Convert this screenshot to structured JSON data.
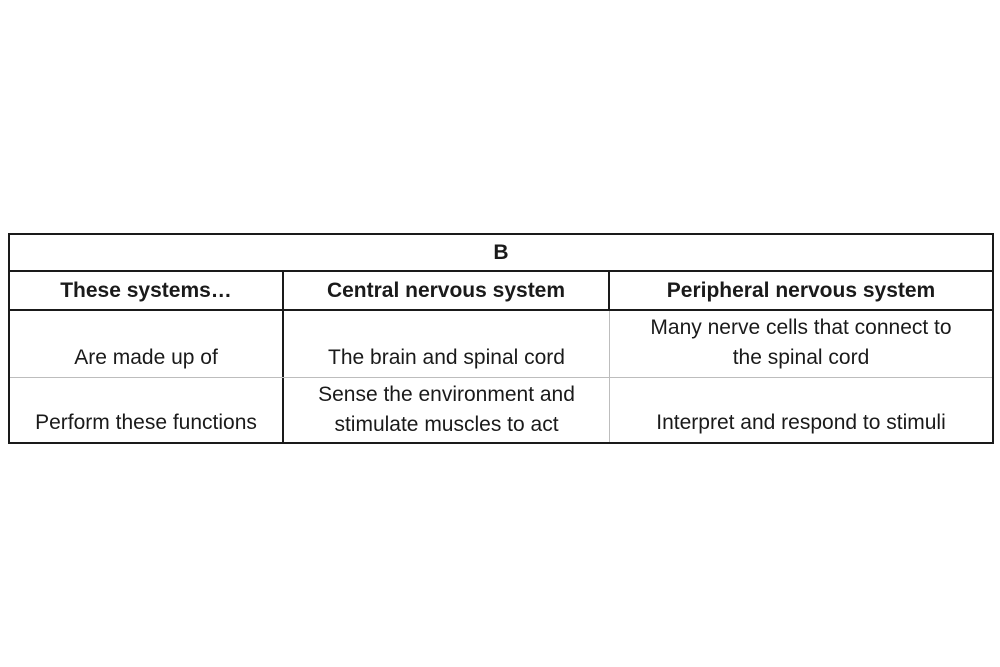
{
  "table": {
    "title": "B",
    "headers": [
      "These systems…",
      "Central nervous system",
      "Peripheral nervous system"
    ],
    "rows": [
      {
        "label": "Are made up of",
        "central": "The brain and spinal cord",
        "peripheral_line1": "Many nerve cells that connect to",
        "peripheral_line2": "the spinal cord"
      },
      {
        "label": "Perform these functions",
        "central_line1": "Sense the environment and",
        "central_line2": "stimulate muscles to act",
        "peripheral": "Interpret and respond to stimuli"
      }
    ]
  }
}
